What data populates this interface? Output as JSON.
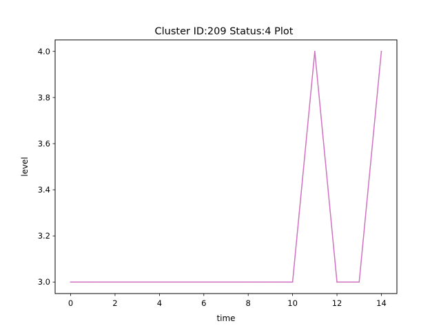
{
  "chart_data": {
    "type": "line",
    "title": "Cluster ID:209 Status:4 Plot",
    "xlabel": "time",
    "ylabel": "level",
    "x": [
      0,
      1,
      2,
      3,
      4,
      5,
      6,
      7,
      8,
      9,
      10,
      11,
      12,
      13,
      14
    ],
    "series": [
      {
        "values": [
          3,
          3,
          3,
          3,
          3,
          3,
          3,
          3,
          3,
          3,
          3,
          4,
          3,
          3,
          4
        ],
        "color": "#d070c0"
      }
    ],
    "xlim": [
      -0.7,
      14.7
    ],
    "ylim": [
      2.95,
      4.05
    ],
    "xticks": [
      0,
      2,
      4,
      6,
      8,
      10,
      12,
      14
    ],
    "xtick_labels": [
      "0",
      "2",
      "4",
      "6",
      "8",
      "10",
      "12",
      "14"
    ],
    "yticks": [
      3.0,
      3.2,
      3.4,
      3.6,
      3.8,
      4.0
    ],
    "ytick_labels": [
      "3.0",
      "3.2",
      "3.4",
      "3.6",
      "3.8",
      "4.0"
    ],
    "grid": false,
    "legend": "none"
  }
}
